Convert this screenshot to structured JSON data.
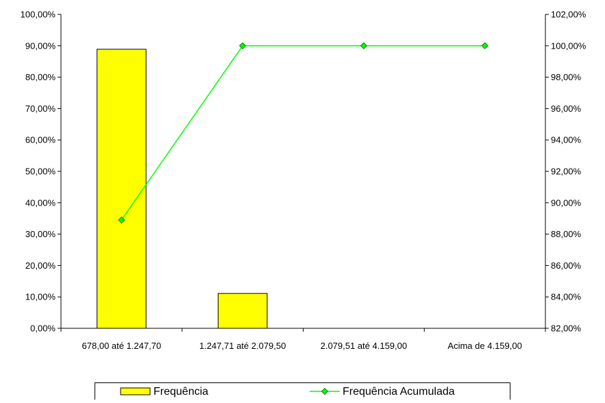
{
  "chart_data": {
    "type": "bar",
    "categories": [
      "678,00 até 1.247,70",
      "1.247,71 até 2.079,50",
      "2.079,51 até 4.159,00",
      "Acima de 4.159,00"
    ],
    "series": [
      {
        "name": "Frequência",
        "type": "bar",
        "axis": "left",
        "values": [
          0.889,
          0.111,
          0.0,
          0.0
        ],
        "color": "#FFFF00"
      },
      {
        "name": "Frequência Acumulada",
        "type": "line",
        "axis": "right",
        "values": [
          0.889,
          1.0,
          1.0,
          1.0
        ],
        "color": "#00FF00",
        "marker": "diamond"
      }
    ],
    "y_left": {
      "ylim": [
        0,
        1
      ],
      "ticks": [
        0,
        0.1,
        0.2,
        0.3,
        0.4,
        0.5,
        0.6,
        0.7,
        0.8,
        0.9,
        1.0
      ],
      "tick_labels": [
        "0,00%",
        "10,00%",
        "20,00%",
        "30,00%",
        "40,00%",
        "50,00%",
        "60,00%",
        "70,00%",
        "80,00%",
        "90,00%",
        "100,00%"
      ]
    },
    "y_right": {
      "ylim": [
        0.82,
        1.02
      ],
      "ticks": [
        0.82,
        0.84,
        0.86,
        0.88,
        0.9,
        0.92,
        0.94,
        0.96,
        0.98,
        1.0,
        1.02
      ],
      "tick_labels": [
        "82,00%",
        "84,00%",
        "86,00%",
        "88,00%",
        "90,00%",
        "92,00%",
        "94,00%",
        "96,00%",
        "98,00%",
        "100,00%",
        "102,00%"
      ]
    },
    "grid": false,
    "legend_position": "bottom"
  }
}
